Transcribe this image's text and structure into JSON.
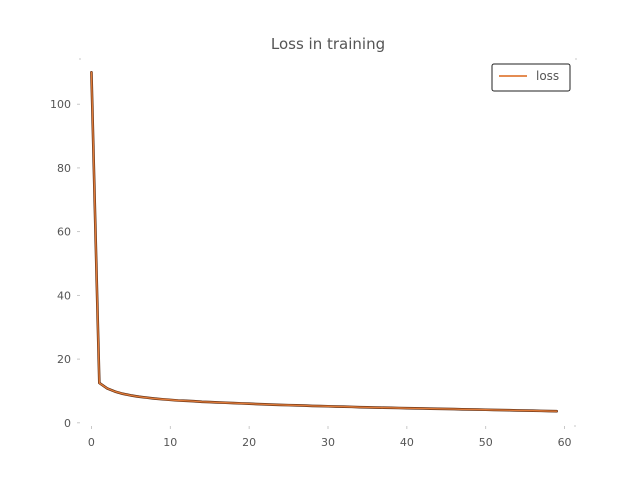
{
  "chart_data": {
    "type": "line",
    "title": "Loss in training",
    "xlabel": "",
    "ylabel": "",
    "xlim": [
      -1.45,
      61.45
    ],
    "ylim": [
      -1.0,
      114.5
    ],
    "x_ticks": [
      0,
      10,
      20,
      30,
      40,
      50,
      60
    ],
    "y_ticks": [
      0,
      20,
      40,
      60,
      80,
      100
    ],
    "x_tick_labels": [
      "0",
      "10",
      "20",
      "30",
      "40",
      "50",
      "60"
    ],
    "y_tick_labels": [
      "0",
      "20",
      "40",
      "60",
      "80",
      "100"
    ],
    "grid": false,
    "legend_position": "top-right",
    "series": [
      {
        "name": "loss",
        "color": "#e07b39",
        "x": [
          0,
          1,
          2,
          3,
          4,
          5,
          6,
          7,
          8,
          9,
          10,
          11,
          12,
          13,
          14,
          15,
          16,
          17,
          18,
          19,
          20,
          21,
          22,
          23,
          24,
          25,
          26,
          27,
          28,
          29,
          30,
          31,
          32,
          33,
          34,
          35,
          36,
          37,
          38,
          39,
          40,
          41,
          42,
          43,
          44,
          45,
          46,
          47,
          48,
          49,
          50,
          51,
          52,
          53,
          54,
          55,
          56,
          57,
          58,
          59
        ],
        "values": [
          110,
          12.5,
          10.8,
          9.8,
          9.1,
          8.6,
          8.2,
          7.9,
          7.6,
          7.4,
          7.2,
          7.0,
          6.9,
          6.8,
          6.6,
          6.5,
          6.4,
          6.3,
          6.2,
          6.1,
          6.0,
          5.9,
          5.8,
          5.7,
          5.6,
          5.55,
          5.5,
          5.4,
          5.3,
          5.25,
          5.2,
          5.1,
          5.05,
          5.0,
          4.9,
          4.85,
          4.8,
          4.75,
          4.7,
          4.65,
          4.6,
          4.55,
          4.5,
          4.45,
          4.4,
          4.35,
          4.3,
          4.25,
          4.2,
          4.15,
          4.1,
          4.05,
          4.0,
          3.95,
          3.9,
          3.85,
          3.8,
          3.75,
          3.7,
          3.65
        ]
      }
    ]
  }
}
